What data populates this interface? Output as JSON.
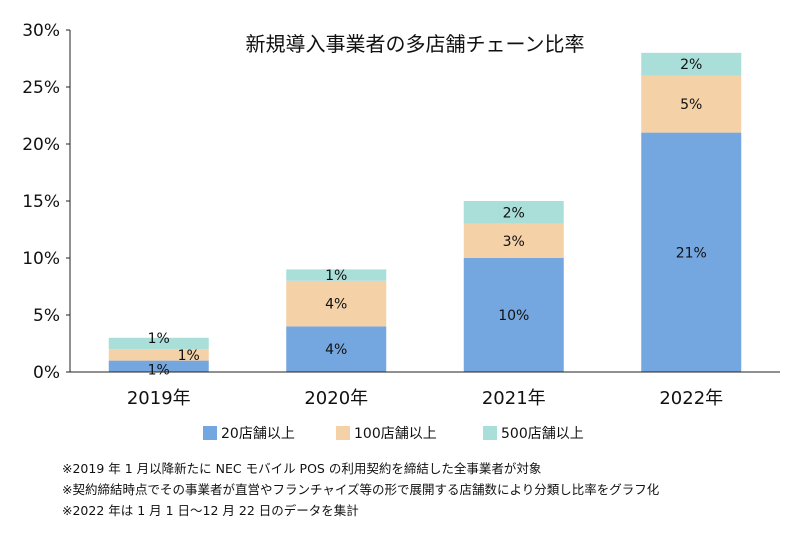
{
  "chart_data": {
    "type": "bar",
    "stacked": true,
    "title": "新規導入事業者の多店舗チェーン比率",
    "categories": [
      "2019年",
      "2020年",
      "2021年",
      "2022年"
    ],
    "ylim": [
      0,
      30
    ],
    "yticks": [
      0,
      5,
      10,
      15,
      20,
      25,
      30
    ],
    "ytick_labels": [
      "0%",
      "5%",
      "10%",
      "15%",
      "20%",
      "25%",
      "30%"
    ],
    "series": [
      {
        "name": "20店舗以上",
        "color": "#74a7e0",
        "values": [
          1,
          4,
          10,
          21
        ],
        "labels": [
          "1%",
          "4%",
          "10%",
          "21%"
        ]
      },
      {
        "name": "100店舗以上",
        "color": "#f4d1a7",
        "values": [
          1,
          4,
          3,
          5
        ],
        "labels": [
          "1%",
          "4%",
          "3%",
          "5%"
        ]
      },
      {
        "name": "500店舗以上",
        "color": "#a9ded9",
        "values": [
          1,
          1,
          2,
          2
        ],
        "labels": [
          "1%",
          "1%",
          "2%",
          "2%"
        ]
      }
    ],
    "legend_position": "bottom"
  },
  "notes": [
    "※2019 年 1 月以降新たに NEC モバイル POS の利用契約を締結した全事業者が対象",
    "※契約締結時点でその事業者が直営やフランチャイズ等の形で展開する店舗数により分類し比率をグラフ化",
    "※2022 年は 1 月 1 日～12 月 22 日のデータを集計"
  ]
}
